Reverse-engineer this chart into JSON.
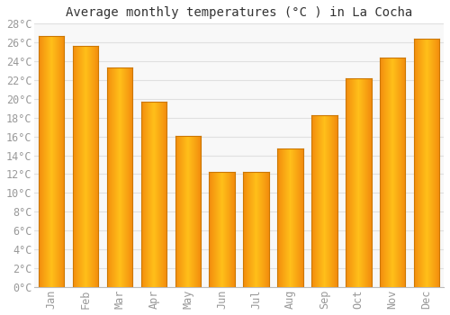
{
  "title": "Average monthly temperatures (°C ) in La Cocha",
  "months": [
    "Jan",
    "Feb",
    "Mar",
    "Apr",
    "May",
    "Jun",
    "Jul",
    "Aug",
    "Sep",
    "Oct",
    "Nov",
    "Dec"
  ],
  "values": [
    26.7,
    25.6,
    23.3,
    19.7,
    16.1,
    12.2,
    12.2,
    14.7,
    18.3,
    22.2,
    24.4,
    26.4
  ],
  "bar_color_main": "#FFA500",
  "bar_color_edge": "#E08000",
  "bar_color_light": "#FFD080",
  "background_color": "#ffffff",
  "plot_bg_color": "#f8f8f8",
  "grid_color": "#e0e0e0",
  "tick_label_color": "#999999",
  "title_color": "#333333",
  "ylim": [
    0,
    28
  ],
  "yticks": [
    0,
    2,
    4,
    6,
    8,
    10,
    12,
    14,
    16,
    18,
    20,
    22,
    24,
    26,
    28
  ],
  "title_fontsize": 10,
  "tick_fontsize": 8.5,
  "bar_width": 0.75,
  "figsize": [
    5.0,
    3.5
  ],
  "dpi": 100
}
